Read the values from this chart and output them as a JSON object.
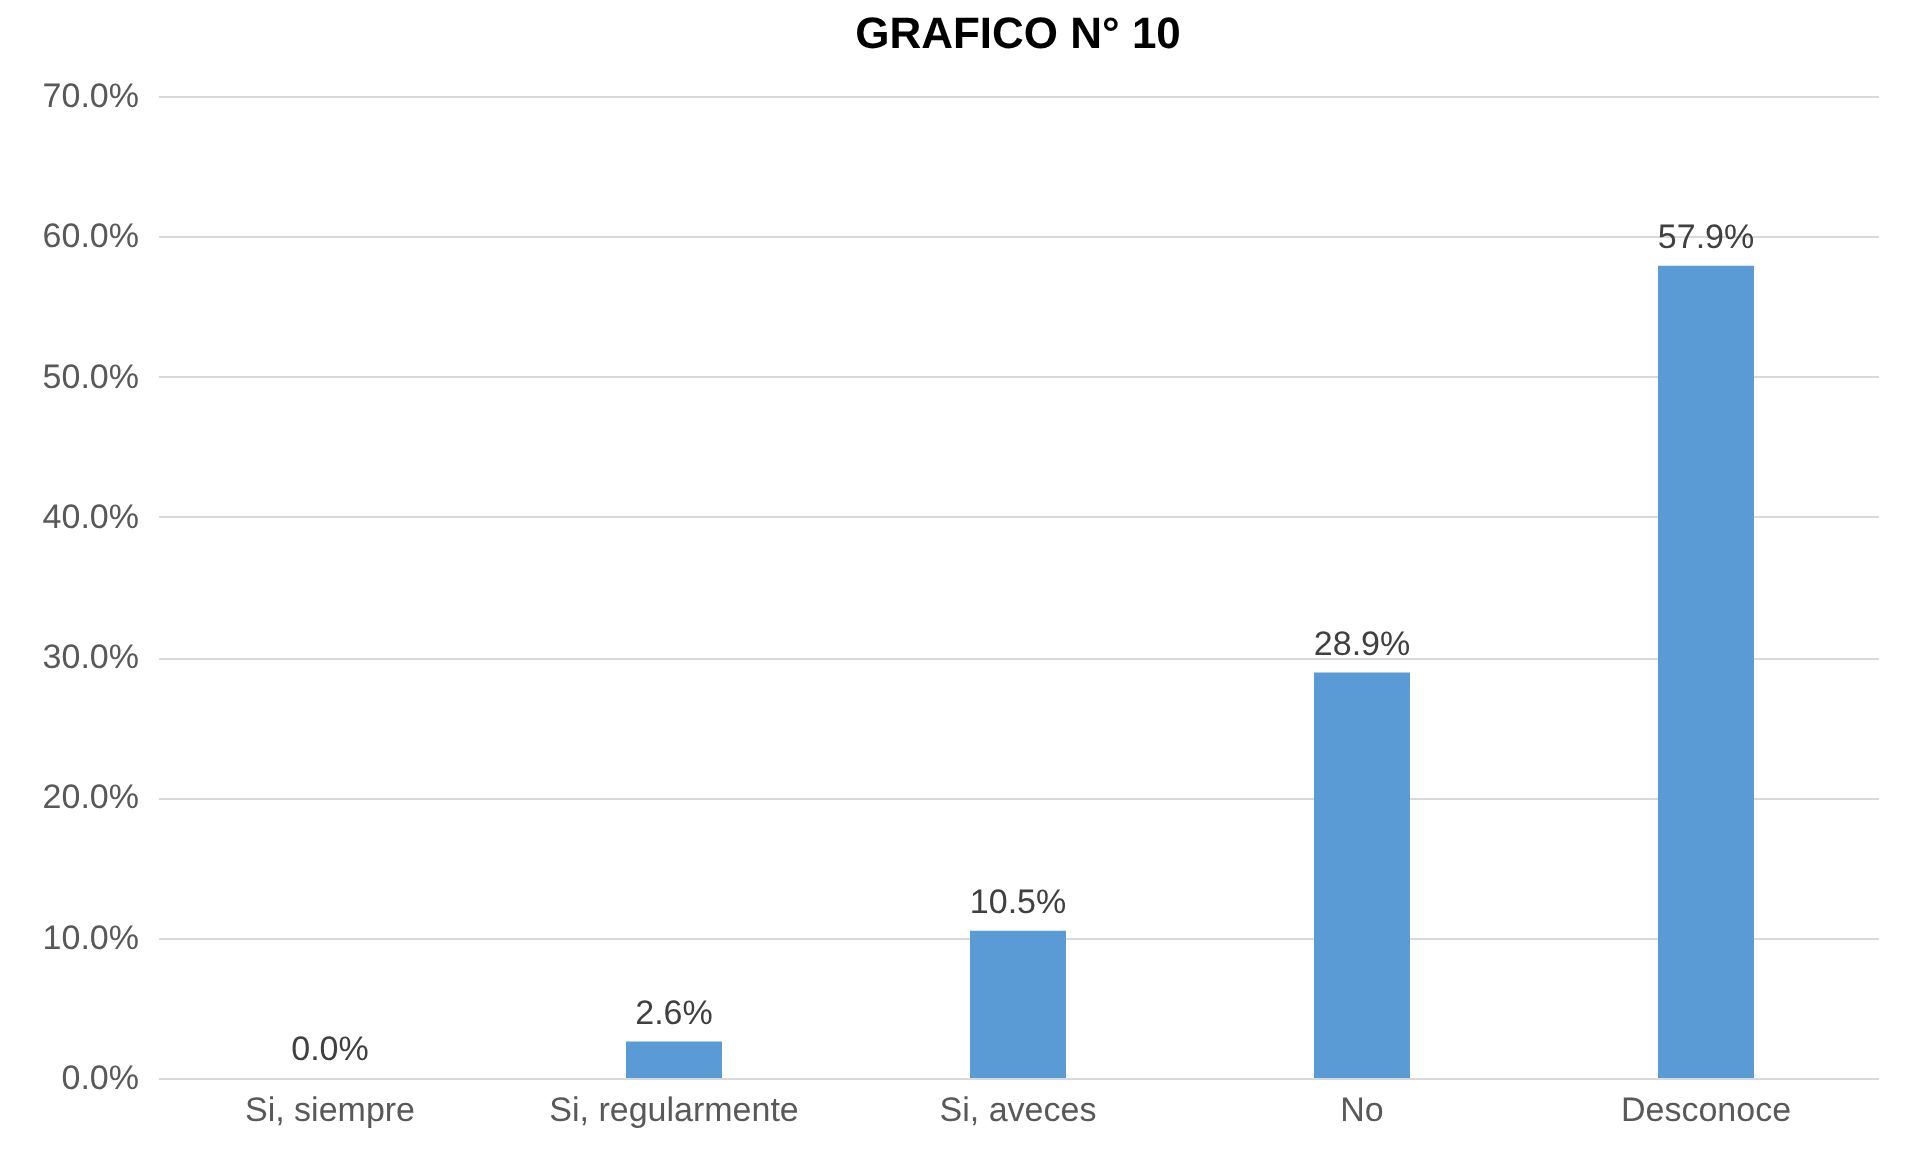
{
  "chart_data": {
    "type": "bar",
    "title": "GRAFICO N° 10",
    "categories": [
      "Si, siempre",
      "Si, regularmente",
      "Si, aveces",
      "No",
      "Desconoce"
    ],
    "values": [
      0.0,
      2.6,
      10.5,
      28.9,
      57.9
    ],
    "value_labels": [
      "0.0%",
      "2.6%",
      "10.5%",
      "28.9%",
      "57.9%"
    ],
    "color": "#5b9bd5",
    "ylim": [
      0,
      70
    ],
    "yticks": [
      {
        "value": 0,
        "label": "0.0%"
      },
      {
        "value": 10,
        "label": "10.0%"
      },
      {
        "value": 20,
        "label": "20.0%"
      },
      {
        "value": 30,
        "label": "30.0%"
      },
      {
        "value": 40,
        "label": "40.0%"
      },
      {
        "value": 50,
        "label": "50.0%"
      },
      {
        "value": 60,
        "label": "60.0%"
      },
      {
        "value": 70,
        "label": "70.0%"
      }
    ],
    "grid": "y"
  }
}
